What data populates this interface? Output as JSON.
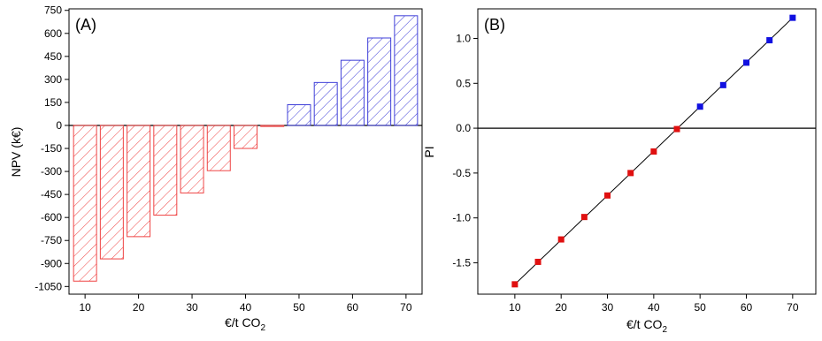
{
  "chart_data": [
    {
      "type": "bar",
      "panel_label": "(A)",
      "title": "",
      "xlabel": {
        "main": "€/t CO",
        "sub": "2"
      },
      "ylabel": "NPV (k€)",
      "x": [
        10,
        15,
        20,
        25,
        30,
        35,
        40,
        45,
        50,
        55,
        60,
        65,
        70
      ],
      "values": [
        -1015,
        -870,
        -725,
        -585,
        -440,
        -295,
        -150,
        -5,
        135,
        280,
        425,
        570,
        715
      ],
      "xlim": [
        7,
        73
      ],
      "ylim": [
        -1100,
        760
      ],
      "xticks": [
        10,
        20,
        30,
        40,
        50,
        60,
        70
      ],
      "yticks": [
        -1050,
        -900,
        -750,
        -600,
        -450,
        -300,
        -150,
        0,
        150,
        300,
        450,
        600,
        750
      ],
      "colors": {
        "negative": "#ef4444",
        "positive": "#4040d8"
      },
      "bar_style": "hatched",
      "grid": false,
      "zero_line": true
    },
    {
      "type": "scatter",
      "panel_label": "(B)",
      "title": "",
      "xlabel": {
        "main": "€/t CO",
        "sub": "2"
      },
      "ylabel": "PI",
      "x": [
        10,
        15,
        20,
        25,
        30,
        35,
        40,
        45,
        50,
        55,
        60,
        65,
        70
      ],
      "y": [
        -1.74,
        -1.49,
        -1.24,
        -0.99,
        -0.75,
        -0.5,
        -0.26,
        -0.01,
        0.24,
        0.48,
        0.73,
        0.98,
        1.23
      ],
      "xlim": [
        2,
        75
      ],
      "ylim": [
        -1.85,
        1.33
      ],
      "xticks": [
        10,
        20,
        30,
        40,
        50,
        60,
        70
      ],
      "yticks": [
        -1.5,
        -1.0,
        -0.5,
        0.0,
        0.5,
        1.0
      ],
      "colors": {
        "negative": "#e01010",
        "positive": "#1010e0",
        "fit_line": "#000000"
      },
      "fit_line": true,
      "grid": false,
      "zero_line": true
    }
  ]
}
